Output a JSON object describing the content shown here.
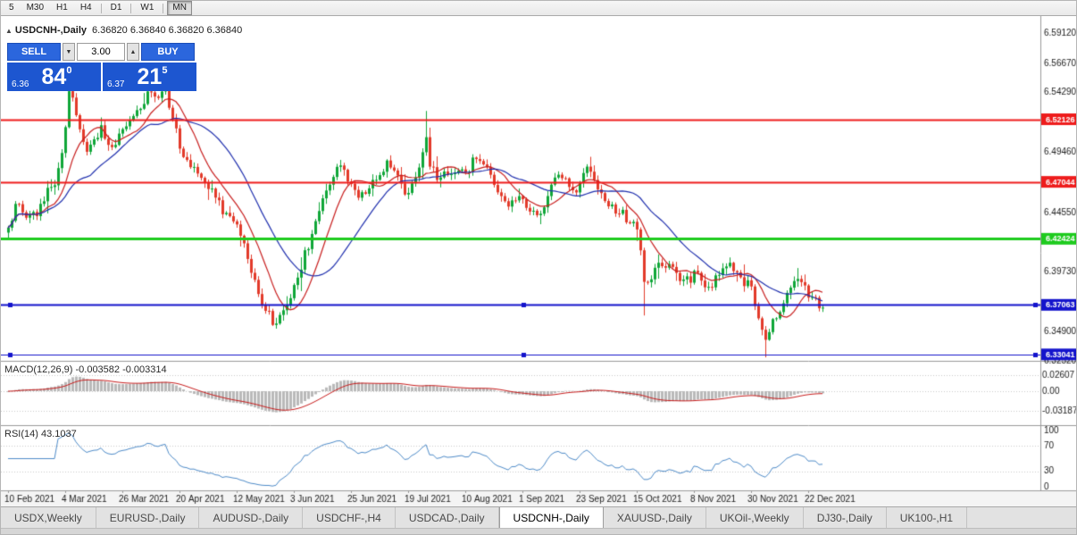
{
  "colors": {
    "candle_up": "#0fa638",
    "candle_down": "#e23a2a",
    "ma_fast": "#c81e1e",
    "ma_slow": "#1f2fae",
    "macd_hist": "#b9b9b9",
    "macd_signal": "#c81e1e",
    "rsi_line": "#4f8cc9",
    "grid_dotted": "#c9c9c9",
    "separator": "#9a9a9a",
    "axis_text": "#1a1a1a",
    "trade_panel_blue": "#1d56d0",
    "button_blue": "#2b66dd"
  },
  "toolbar": {
    "buttons": [
      {
        "label": "5"
      },
      {
        "label": "M30"
      },
      {
        "label": "H1"
      },
      {
        "label": "H4"
      },
      {
        "label": "D1"
      },
      {
        "label": "W1"
      },
      {
        "label": "MN"
      }
    ]
  },
  "chart_header": {
    "symbol_label": "USDCNH-,Daily",
    "ohlc_text": "6.36820 6.36840 6.36820 6.36840"
  },
  "trade_panel": {
    "sell_label": "SELL",
    "buy_label": "BUY",
    "volume": "3.00",
    "sell_price_small": "6.36",
    "sell_price_big": "84",
    "sell_price_sup": "0",
    "buy_price_small": "6.37",
    "buy_price_big": "21",
    "buy_price_sup": "5"
  },
  "chart_data": {
    "type": "candlestick",
    "symbol": "USDCNH-",
    "timeframe": "Daily",
    "ylim": [
      6.3252,
      6.605
    ],
    "bars_total": 229,
    "last_close": 6.3684,
    "price_axis_labels": [
      "6.59120",
      "6.56670",
      "6.54290",
      "6.51910",
      "6.49460",
      "6.44550",
      "6.39730",
      "6.34900",
      "6.32520"
    ],
    "x_axis_dates": [
      "10 Feb 2021",
      "4 Mar 2021",
      "26 Mar 2021",
      "20 Apr 2021",
      "12 May 2021",
      "3 Jun 2021",
      "25 Jun 2021",
      "19 Jul 2021",
      "10 Aug 2021",
      "1 Sep 2021",
      "23 Sep 2021",
      "15 Oct 2021",
      "8 Nov 2021",
      "30 Nov 2021",
      "22 Dec 2021"
    ],
    "levels": [
      {
        "price": 6.52126,
        "label": "6.52126",
        "color": "#ee1c1c",
        "width": 2,
        "handles": false
      },
      {
        "price": 6.47044,
        "label": "6.47044",
        "color": "#ee1c1c",
        "width": 2,
        "handles": false
      },
      {
        "price": 6.42424,
        "label": "6.42424",
        "color": "#1ecb1e",
        "width": 3,
        "handles": false
      },
      {
        "price": 6.37063,
        "label": "6.37063",
        "color": "#1414cc",
        "width": 2,
        "handles": true
      },
      {
        "price": 6.33041,
        "label": "6.33041",
        "color": "#1414cc",
        "width": 1,
        "handles": true
      }
    ],
    "price_path_anchors": [
      [
        0,
        6.43
      ],
      [
        2,
        6.452
      ],
      [
        4,
        6.448
      ],
      [
        6,
        6.44
      ],
      [
        8,
        6.446
      ],
      [
        10,
        6.458
      ],
      [
        12,
        6.466
      ],
      [
        14,
        6.478
      ],
      [
        16,
        6.512
      ],
      [
        17,
        6.542
      ],
      [
        18,
        6.535
      ],
      [
        20,
        6.512
      ],
      [
        22,
        6.498
      ],
      [
        24,
        6.505
      ],
      [
        26,
        6.512
      ],
      [
        28,
        6.496
      ],
      [
        30,
        6.504
      ],
      [
        32,
        6.512
      ],
      [
        34,
        6.52
      ],
      [
        36,
        6.528
      ],
      [
        38,
        6.536
      ],
      [
        40,
        6.545
      ],
      [
        42,
        6.538
      ],
      [
        44,
        6.545
      ],
      [
        46,
        6.524
      ],
      [
        48,
        6.498
      ],
      [
        50,
        6.484
      ],
      [
        53,
        6.48
      ],
      [
        56,
        6.468
      ],
      [
        59,
        6.452
      ],
      [
        62,
        6.44
      ],
      [
        65,
        6.428
      ],
      [
        68,
        6.4
      ],
      [
        71,
        6.372
      ],
      [
        74,
        6.358
      ],
      [
        76,
        6.362
      ],
      [
        78,
        6.374
      ],
      [
        80,
        6.385
      ],
      [
        82,
        6.402
      ],
      [
        84,
        6.42
      ],
      [
        86,
        6.438
      ],
      [
        88,
        6.455
      ],
      [
        90,
        6.47
      ],
      [
        92,
        6.486
      ],
      [
        94,
        6.478
      ],
      [
        96,
        6.465
      ],
      [
        98,
        6.458
      ],
      [
        100,
        6.462
      ],
      [
        102,
        6.47
      ],
      [
        104,
        6.478
      ],
      [
        106,
        6.486
      ],
      [
        108,
        6.482
      ],
      [
        110,
        6.466
      ],
      [
        112,
        6.458
      ],
      [
        114,
        6.472
      ],
      [
        116,
        6.498
      ],
      [
        117,
        6.508
      ],
      [
        118,
        6.486
      ],
      [
        120,
        6.474
      ],
      [
        122,
        6.48
      ],
      [
        124,
        6.476
      ],
      [
        126,
        6.482
      ],
      [
        128,
        6.478
      ],
      [
        130,
        6.486
      ],
      [
        132,
        6.49
      ],
      [
        134,
        6.48
      ],
      [
        136,
        6.468
      ],
      [
        138,
        6.46
      ],
      [
        140,
        6.454
      ],
      [
        142,
        6.458
      ],
      [
        144,
        6.452
      ],
      [
        146,
        6.446
      ],
      [
        148,
        6.442
      ],
      [
        150,
        6.448
      ],
      [
        152,
        6.47
      ],
      [
        154,
        6.48
      ],
      [
        156,
        6.472
      ],
      [
        158,
        6.462
      ],
      [
        160,
        6.47
      ],
      [
        162,
        6.48
      ],
      [
        164,
        6.47
      ],
      [
        166,
        6.458
      ],
      [
        168,
        6.45
      ],
      [
        170,
        6.446
      ],
      [
        172,
        6.444
      ],
      [
        174,
        6.44
      ],
      [
        176,
        6.436
      ],
      [
        177,
        6.415
      ],
      [
        178,
        6.388
      ],
      [
        180,
        6.395
      ],
      [
        182,
        6.402
      ],
      [
        184,
        6.404
      ],
      [
        186,
        6.398
      ],
      [
        188,
        6.392
      ],
      [
        190,
        6.39
      ],
      [
        192,
        6.396
      ],
      [
        194,
        6.39
      ],
      [
        196,
        6.384
      ],
      [
        198,
        6.392
      ],
      [
        200,
        6.4
      ],
      [
        202,
        6.404
      ],
      [
        204,
        6.398
      ],
      [
        206,
        6.39
      ],
      [
        208,
        6.384
      ],
      [
        210,
        6.362
      ],
      [
        212,
        6.338
      ],
      [
        213,
        6.348
      ],
      [
        214,
        6.356
      ],
      [
        216,
        6.368
      ],
      [
        218,
        6.382
      ],
      [
        220,
        6.392
      ],
      [
        221,
        6.396
      ],
      [
        222,
        6.388
      ],
      [
        224,
        6.378
      ],
      [
        226,
        6.372
      ],
      [
        228,
        6.3684
      ]
    ],
    "wick_spikes": [
      {
        "day": 17,
        "high": 6.556
      },
      {
        "day": 41,
        "high": 6.553
      },
      {
        "day": 117,
        "high": 6.528
      },
      {
        "day": 178,
        "low": 6.362
      },
      {
        "day": 212,
        "low": 6.328
      }
    ],
    "indicators": {
      "ma_fast_period": 10,
      "ma_slow_period": 24,
      "macd": {
        "label": "MACD(12,26,9)",
        "values_label": "-0.003582 -0.003314",
        "fast": 12,
        "slow": 26,
        "signal": 9,
        "axis_labels": [
          "0.02607",
          "0.00",
          "-0.03187"
        ],
        "axis_levels": [
          0.02607,
          0,
          -0.03187
        ]
      },
      "rsi": {
        "label": "RSI(14)",
        "value_label": "43.1037",
        "period": 14,
        "axis_labels": [
          "100",
          "70",
          "30",
          "0"
        ],
        "axis_values": [
          100,
          70,
          30,
          0
        ],
        "dotted_levels": [
          70,
          30
        ]
      }
    }
  },
  "tab_bar": {
    "tabs": [
      {
        "label": "USDX,Weekly"
      },
      {
        "label": "EURUSD-,Daily"
      },
      {
        "label": "AUDUSD-,Daily"
      },
      {
        "label": "USDCHF-,H4"
      },
      {
        "label": "USDCAD-,Daily"
      },
      {
        "label": "USDCNH-,Daily"
      },
      {
        "label": "XAUUSD-,Daily"
      },
      {
        "label": "UKOil-,Weekly"
      },
      {
        "label": "DJ30-,Daily"
      },
      {
        "label": "UK100-,H1"
      }
    ]
  }
}
